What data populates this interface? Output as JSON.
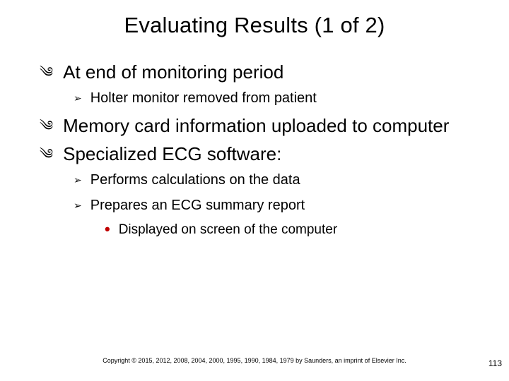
{
  "colors": {
    "background": "#ffffff",
    "text": "#000000",
    "accent_bullet": "#c00000"
  },
  "typography": {
    "title_fontsize": 31,
    "l1_fontsize": 26,
    "l2_fontsize": 20,
    "l3_fontsize": 19,
    "copyright_fontsize": 9,
    "pagenum_fontsize": 12,
    "font_family": "Arial"
  },
  "markers": {
    "l1": "༄",
    "l2": "➢",
    "l3": "•"
  },
  "title": "Evaluating Results (1 of 2)",
  "bullets": {
    "b1": "At end of monitoring period",
    "b1_1": "Holter monitor removed from patient",
    "b2": "Memory card information uploaded to computer",
    "b3": "Specialized ECG software:",
    "b3_1": "Performs calculations on the data",
    "b3_2": "Prepares an ECG summary report",
    "b3_2_1": "Displayed on screen of the computer"
  },
  "copyright": "Copyright © 2015, 2012, 2008, 2004, 2000, 1995, 1990, 1984, 1979 by Saunders, an imprint of Elsevier Inc.",
  "page_number": "113"
}
